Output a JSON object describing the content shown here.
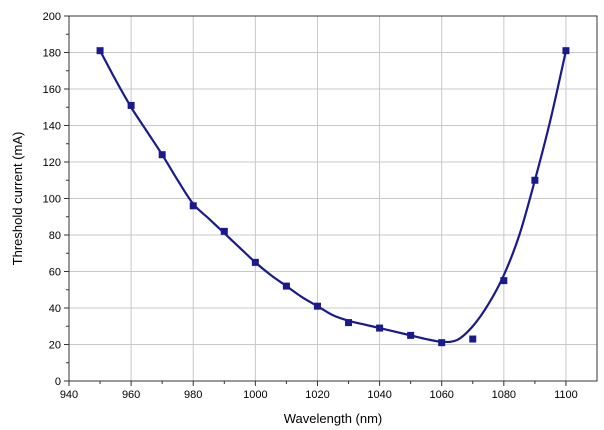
{
  "chart_data": {
    "type": "line",
    "title": "",
    "xlabel": "Wavelength (nm)",
    "ylabel": "Threshold current (mA)",
    "xlim": [
      940,
      1110
    ],
    "ylim": [
      0,
      200
    ],
    "x_ticks": [
      940,
      960,
      980,
      1000,
      1020,
      1040,
      1060,
      1080,
      1100
    ],
    "y_ticks": [
      0,
      20,
      40,
      60,
      80,
      100,
      120,
      140,
      160,
      180,
      200
    ],
    "grid": true,
    "legend": "none",
    "series": [
      {
        "color": "#1a1a8c",
        "marker": "square",
        "x": [
          950,
          960,
          970,
          980,
          990,
          1000,
          1010,
          1020,
          1030,
          1040,
          1050,
          1060,
          1070,
          1080,
          1090,
          1100
        ],
        "y": [
          181,
          151,
          124,
          96,
          82,
          65,
          52,
          41,
          32,
          29,
          25,
          21,
          23,
          55,
          110,
          181
        ]
      }
    ],
    "fit_curve": {
      "color": "#1a1a8c",
      "x": [
        950,
        955,
        960,
        965,
        970,
        975,
        980,
        985,
        990,
        995,
        1000,
        1005,
        1010,
        1015,
        1020,
        1025,
        1030,
        1035,
        1040,
        1045,
        1050,
        1055,
        1060,
        1065,
        1070,
        1075,
        1080,
        1085,
        1090,
        1095,
        1100
      ],
      "y": [
        181,
        165,
        150,
        137,
        124,
        110,
        97,
        89,
        81,
        73,
        65,
        58,
        52,
        46,
        41,
        36,
        33,
        31,
        29,
        27,
        25,
        23,
        21.5,
        22.5,
        30,
        42,
        58,
        80,
        110,
        143,
        181
      ]
    }
  }
}
